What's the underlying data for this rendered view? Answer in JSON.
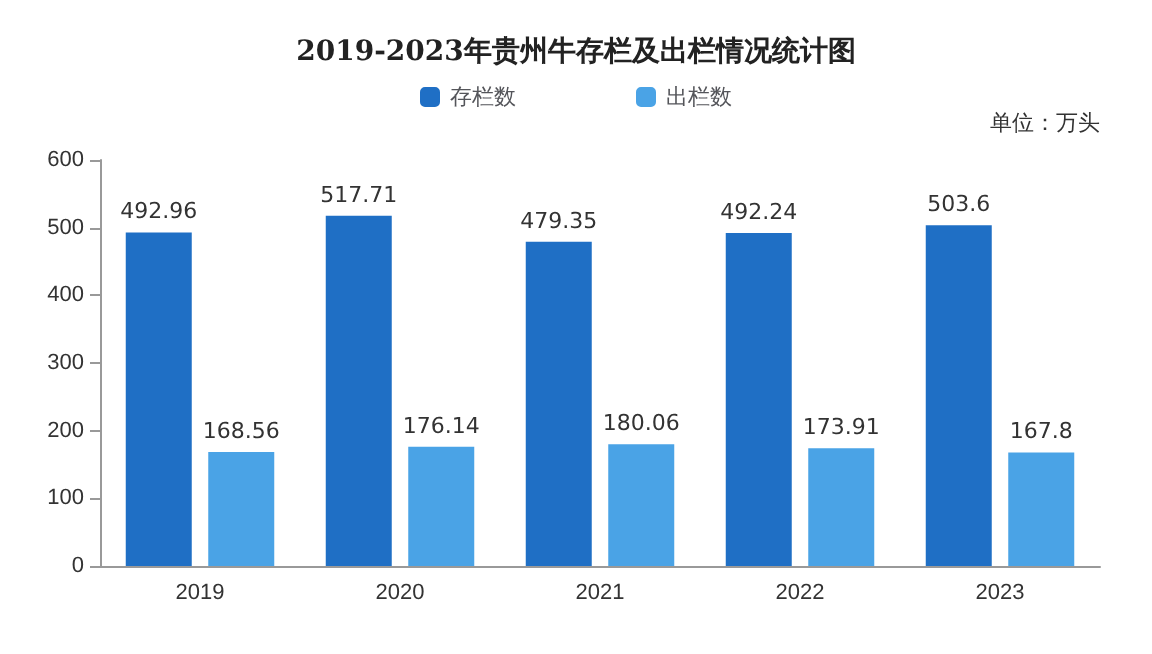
{
  "chart_data": {
    "type": "bar",
    "title": "2019-2023年贵州牛存栏及出栏情况统计图",
    "categories": [
      "2019",
      "2020",
      "2021",
      "2022",
      "2023"
    ],
    "series": [
      {
        "name": "存栏数",
        "color": "#1f6fc5",
        "values": [
          492.96,
          517.71,
          479.35,
          492.24,
          503.6
        ]
      },
      {
        "name": "出栏数",
        "color": "#4aa3e6",
        "values": [
          168.56,
          176.14,
          180.06,
          173.91,
          167.8
        ]
      }
    ],
    "ylim": [
      0,
      600
    ],
    "yticks": [
      0,
      100,
      200,
      300,
      400,
      500,
      600
    ],
    "grid": false,
    "legend": "top",
    "data_labels": true,
    "annotations": [
      "单位：万头"
    ]
  }
}
